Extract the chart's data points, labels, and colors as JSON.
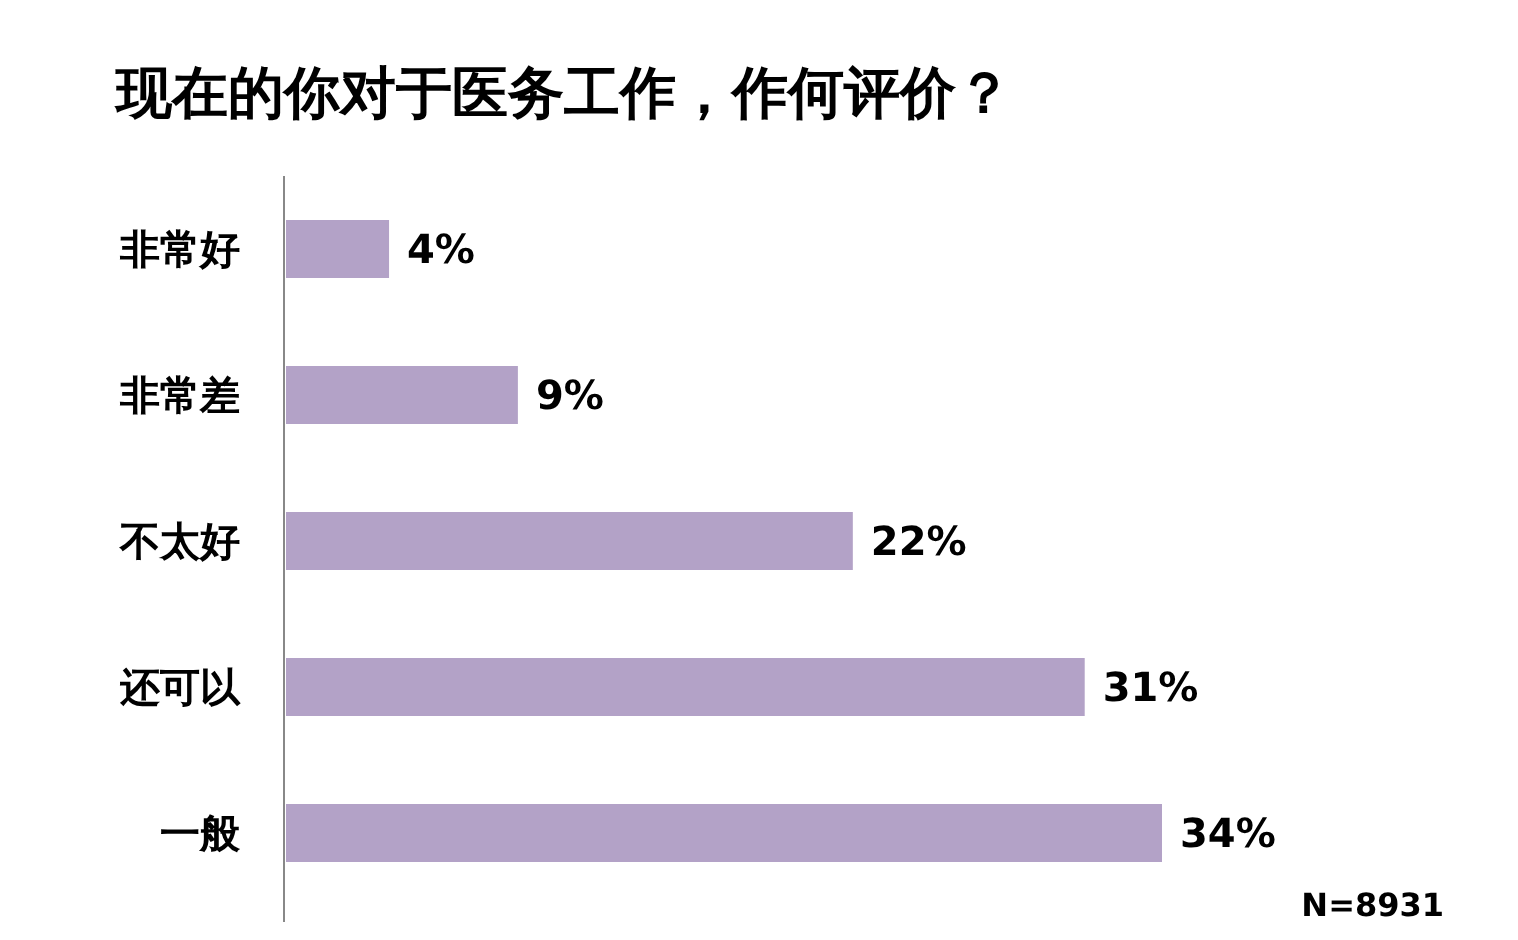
{
  "chart_data": {
    "type": "bar",
    "orientation": "horizontal",
    "title": "现在的你对于医务工作，作何评价？",
    "categories": [
      "非常好",
      "非常差",
      "不太好",
      "还可以",
      "一般"
    ],
    "values": [
      4,
      9,
      22,
      31,
      34
    ],
    "value_labels": [
      "4%",
      "9%",
      "22%",
      "31%",
      "34%"
    ],
    "color": "#b3a2c7",
    "annotations": [
      "N=8931"
    ]
  }
}
